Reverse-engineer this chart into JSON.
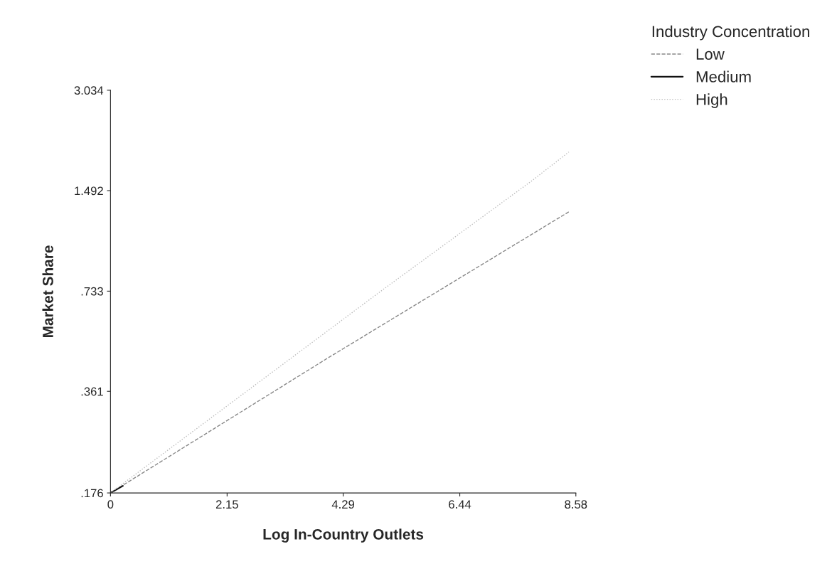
{
  "chart_data": {
    "type": "line",
    "xlabel": "Log In-Country Outlets",
    "ylabel": "Market Share",
    "legend_title": "Industry Concentration",
    "legend": "top right",
    "log": "y",
    "xlim": [
      0,
      8.58
    ],
    "xticks": [
      0,
      2.15,
      4.29,
      6.44,
      8.58
    ],
    "ylim": [
      0.176,
      3.034
    ],
    "yticks": [
      {
        "value": 0.176,
        "label": ".176"
      },
      {
        "value": 0.361,
        "label": ".361"
      },
      {
        "value": 0.733,
        "label": ".733"
      },
      {
        "value": 1.492,
        "label": "1.492"
      },
      {
        "value": 3.034,
        "label": "3.034"
      }
    ],
    "grid": false,
    "series": [
      {
        "name": "Low",
        "color": "#888888",
        "line_style": "dashed",
        "x": [
          0,
          3.98,
          8.47
        ],
        "values": [
          0.176,
          0.454,
          1.29
        ]
      },
      {
        "name": "Medium",
        "color": "#111111",
        "line_style": "solid",
        "x": [
          0,
          0.23
        ],
        "values": [
          0.176,
          0.185
        ]
      },
      {
        "name": "High",
        "color": "#bbbbbb",
        "line_style": "dotted",
        "x": [
          0,
          4.99,
          7.77,
          8.45
        ],
        "values": [
          0.176,
          0.734,
          1.6,
          1.96
        ]
      }
    ]
  }
}
